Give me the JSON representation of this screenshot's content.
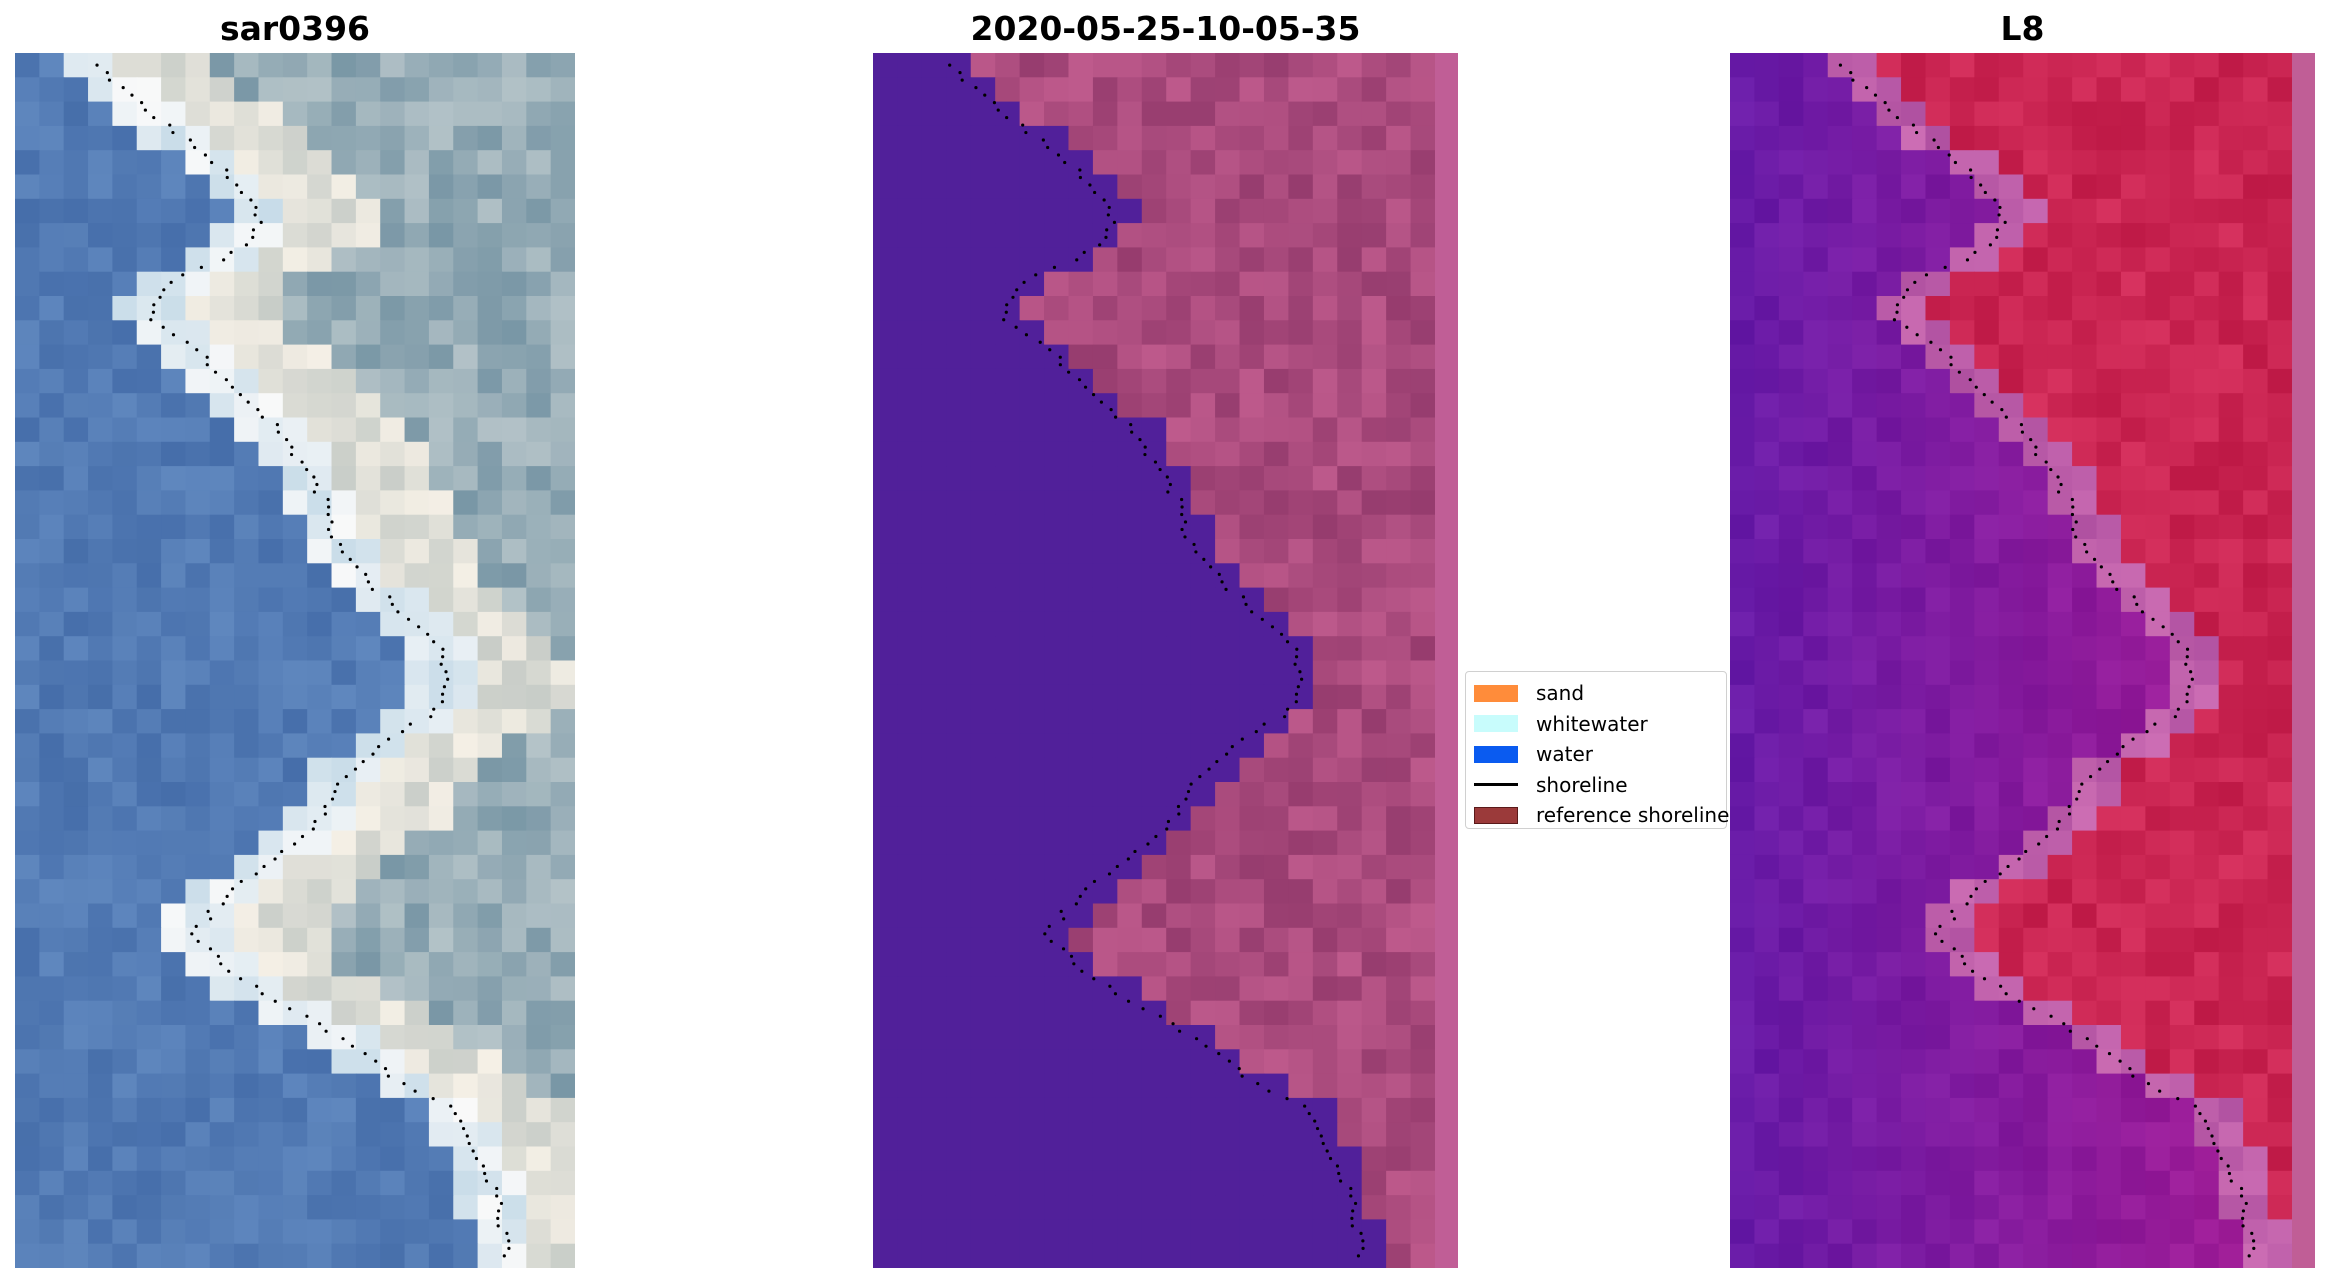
{
  "panels": [
    {
      "title": "sar0396",
      "kind": "rgb"
    },
    {
      "title": "2020-05-25-10-05-35",
      "kind": "classified"
    },
    {
      "title": "L8",
      "kind": "index"
    }
  ],
  "legend": [
    {
      "label": "sand",
      "color": "#ff8c3a",
      "type": "patch"
    },
    {
      "label": "whitewater",
      "color": "#c8fcfc",
      "type": "patch"
    },
    {
      "label": "water",
      "color": "#0a5bf0",
      "type": "patch"
    },
    {
      "label": "shoreline",
      "color": "#000000",
      "type": "line"
    },
    {
      "label": "reference shoreline",
      "color": "#9b3a3a",
      "type": "patch"
    }
  ],
  "colors": {
    "classified_water": "#51209a",
    "classified_land": "#b25a92",
    "edge_strip": "#c05e96"
  }
}
